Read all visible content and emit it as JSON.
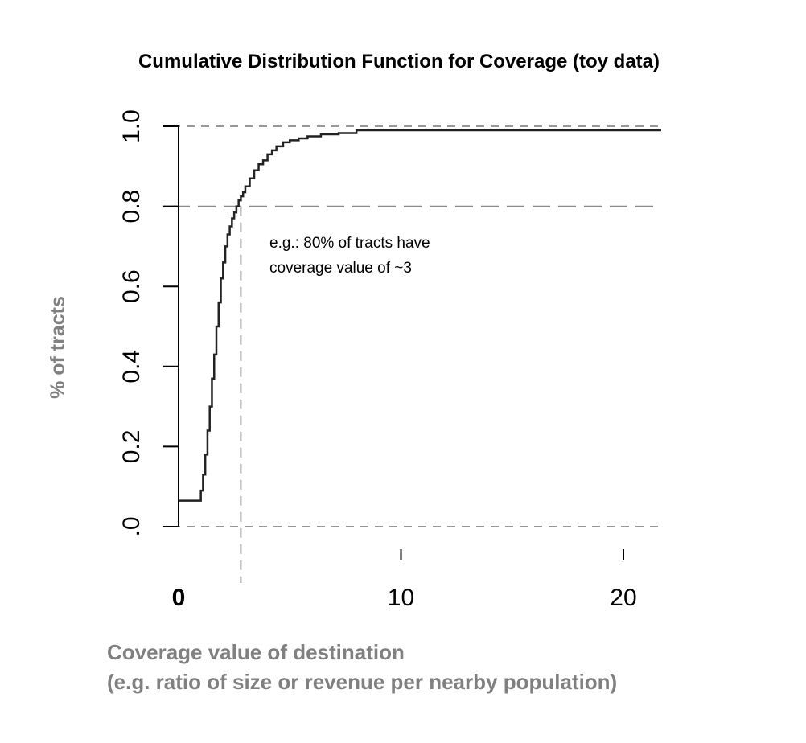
{
  "chart_data": {
    "type": "line",
    "title": "Cumulative Distribution Function for Coverage (toy data)",
    "ylabel": "% of tracts",
    "xlabel_line1": "Coverage value of destination",
    "xlabel_line2": "(e.g. ratio of size or revenue per nearby population)",
    "annotation_line1": "e.g.: 80% of tracts have",
    "annotation_line2": "coverage value of ~3",
    "xlim": [
      0,
      21.7
    ],
    "ylim": [
      0,
      1
    ],
    "x_ticks": [
      {
        "value": 0,
        "label": "0"
      },
      {
        "value": 10,
        "label": "10"
      },
      {
        "value": 20,
        "label": "20"
      }
    ],
    "y_ticks": [
      {
        "value": 0,
        "label": ".0"
      },
      {
        "value": 0.2,
        "label": "0.2"
      },
      {
        "value": 0.4,
        "label": "0.4"
      },
      {
        "value": 0.6,
        "label": "0.6"
      },
      {
        "value": 0.8,
        "label": "0.8"
      },
      {
        "value": 1.0,
        "label": "1.0"
      }
    ],
    "reference_lines": {
      "horizontal": [
        0,
        0.8,
        1.0
      ],
      "vertical": [
        2.8
      ]
    },
    "series": [
      {
        "x": [
          0,
          0.9,
          1.0,
          1.1,
          1.2,
          1.3,
          1.4,
          1.5,
          1.6,
          1.7,
          1.8,
          1.9,
          2.0,
          2.1,
          2.2,
          2.3,
          2.4,
          2.5,
          2.6,
          2.7,
          2.8,
          2.9,
          3.0,
          3.2,
          3.4,
          3.6,
          3.8,
          4.0,
          4.2,
          4.4,
          4.7,
          5.0,
          5.4,
          5.8,
          6.4,
          7.2,
          8.0,
          9.0,
          12.0,
          16.0,
          21.7
        ],
        "y": [
          0.065,
          0.065,
          0.09,
          0.13,
          0.18,
          0.24,
          0.3,
          0.37,
          0.43,
          0.5,
          0.56,
          0.62,
          0.66,
          0.7,
          0.73,
          0.75,
          0.77,
          0.785,
          0.8,
          0.815,
          0.825,
          0.835,
          0.85,
          0.87,
          0.89,
          0.905,
          0.915,
          0.93,
          0.94,
          0.95,
          0.96,
          0.965,
          0.97,
          0.975,
          0.98,
          0.983,
          0.99,
          0.99,
          0.99,
          0.99,
          0.99
        ]
      }
    ]
  }
}
